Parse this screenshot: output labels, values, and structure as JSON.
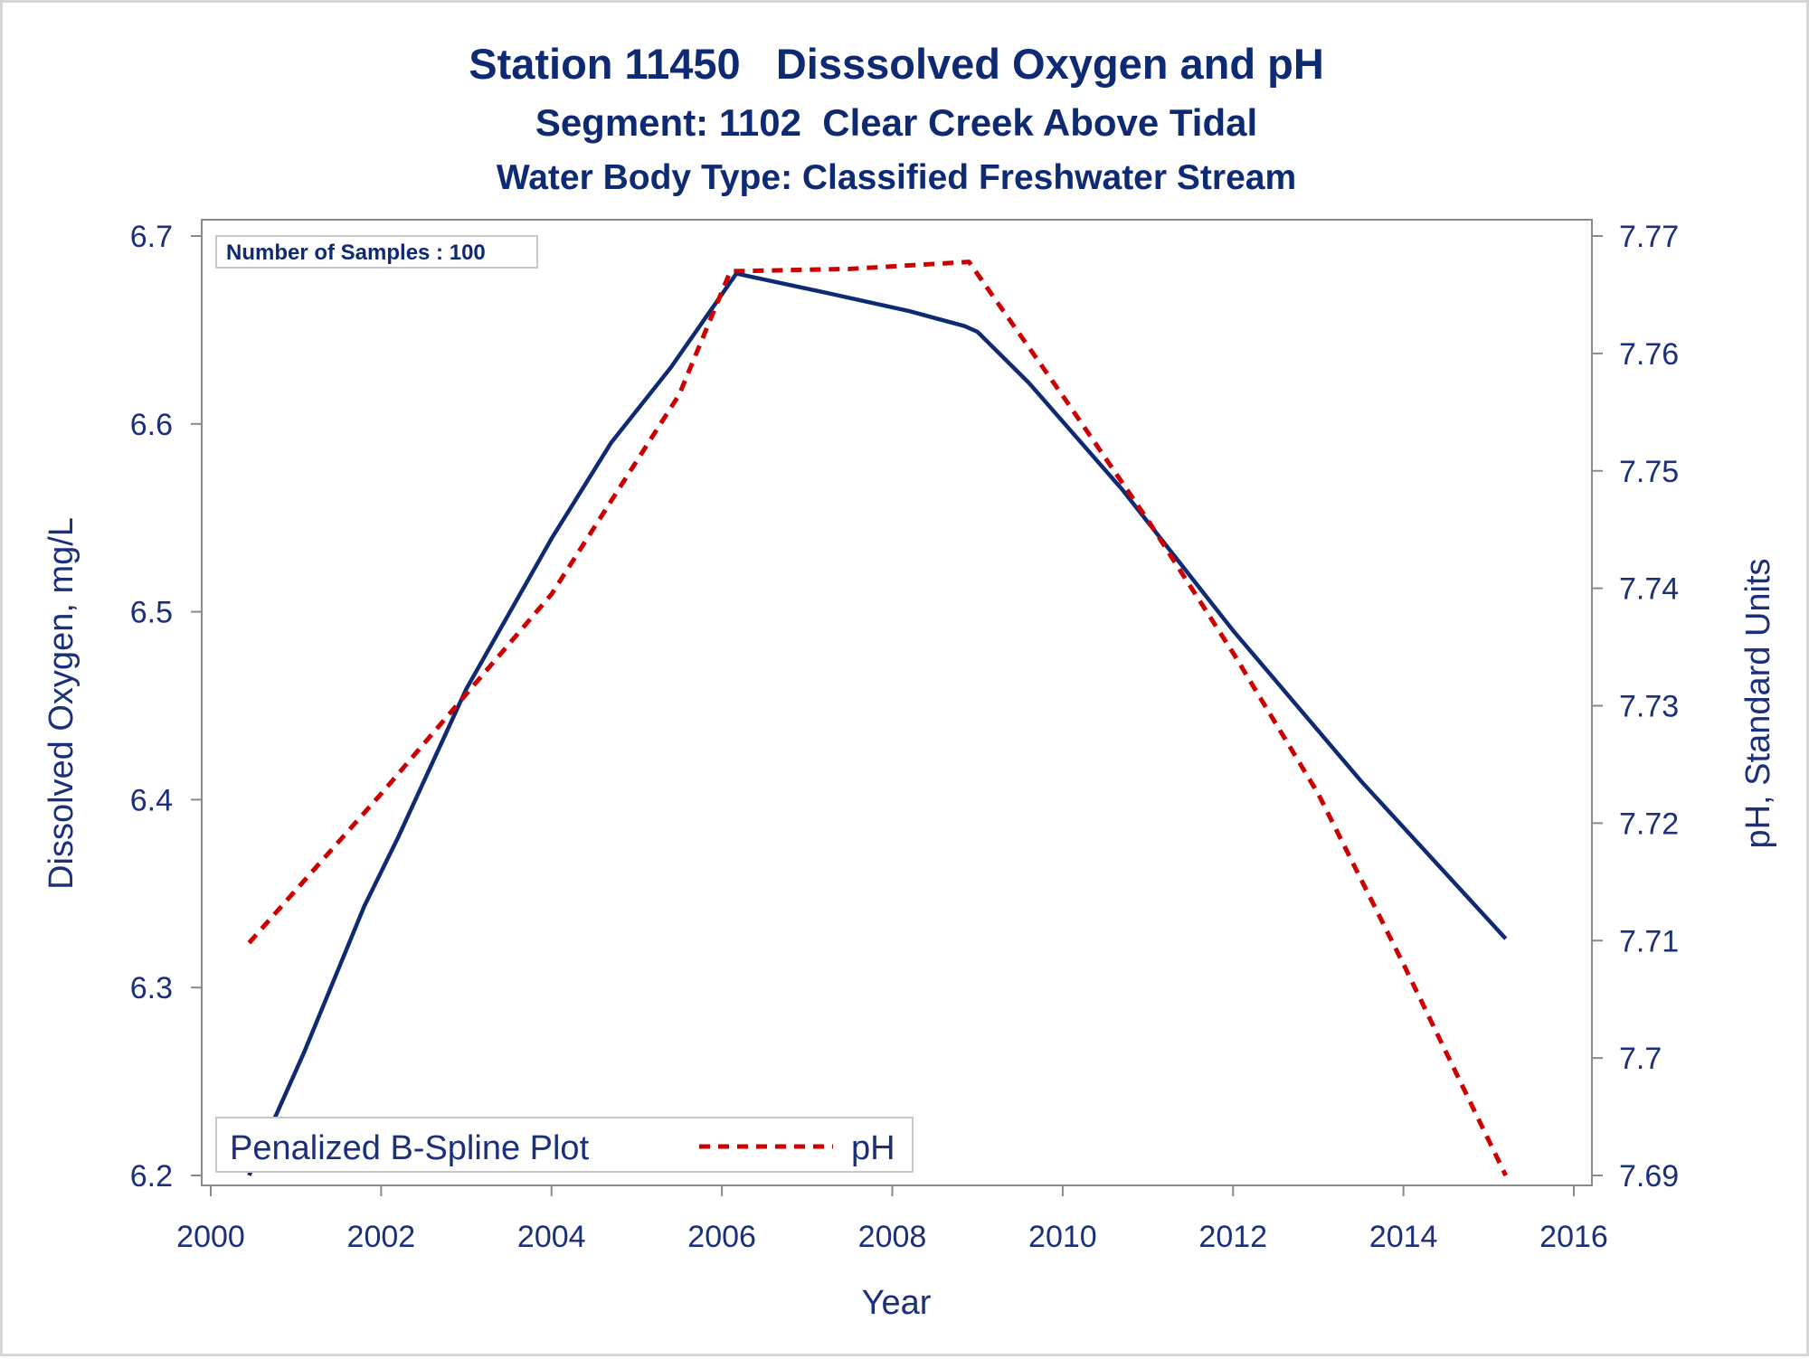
{
  "chart_data": {
    "type": "line",
    "title": "Station 11450   Disssolved Oxygen and pH",
    "subtitle": "Segment: 1102  Clear Creek Above Tidal",
    "subtitle2": "Water Body Type: Classified Freshwater Stream",
    "xlabel": "Year",
    "ylabel_left": "Dissolved Oxygen, mg/L",
    "ylabel_right": "pH, Standard Units",
    "xlim": [
      2000,
      2016
    ],
    "ylim_left": [
      6.2,
      6.7
    ],
    "ylim_right": [
      7.69,
      7.77
    ],
    "x_ticks": [
      "2000",
      "2002",
      "2004",
      "2006",
      "2008",
      "2010",
      "2012",
      "2014",
      "2016"
    ],
    "y_left_ticks": [
      "6.2",
      "6.3",
      "6.4",
      "6.5",
      "6.6",
      "6.7"
    ],
    "y_right_ticks": [
      "7.69",
      "7.7",
      "7.71",
      "7.72",
      "7.73",
      "7.74",
      "7.75",
      "7.76",
      "7.77"
    ],
    "annotation": "Number of Samples : 100",
    "legend": {
      "title": "Penalized B-Spline Plot",
      "placement": "bottom-left",
      "entries": [
        "pH"
      ]
    },
    "grid": false,
    "series": [
      {
        "axis": "left",
        "color": "#0e2a73",
        "style": "solid",
        "x": [
          2000.45,
          2001.1,
          2001.8,
          2002.2,
          2003.0,
          2004.0,
          2004.7,
          2005.4,
          2006.17,
          2007.2,
          2008.2,
          2008.85,
          2009.0,
          2009.6,
          2010.7,
          2012.0,
          2013.5,
          2015.2
        ],
        "y": [
          6.2,
          6.266,
          6.343,
          6.38,
          6.459,
          6.539,
          6.59,
          6.63,
          6.68,
          6.67,
          6.66,
          6.652,
          6.649,
          6.622,
          6.565,
          6.49,
          6.41,
          6.326
        ]
      },
      {
        "name": "pH",
        "axis": "right",
        "color": "#cc0000",
        "style": "dashed",
        "x": [
          2000.45,
          2002.0,
          2004.0,
          2005.5,
          2006.1,
          2007.5,
          2008.9,
          2010.0,
          2011.0,
          2012.0,
          2013.0,
          2014.0,
          2015.2
        ],
        "y": [
          7.7098,
          7.7225,
          7.7395,
          7.7565,
          7.767,
          7.7672,
          7.7678,
          7.7564,
          7.7458,
          7.7345,
          7.7225,
          7.708,
          7.69
        ]
      }
    ]
  }
}
